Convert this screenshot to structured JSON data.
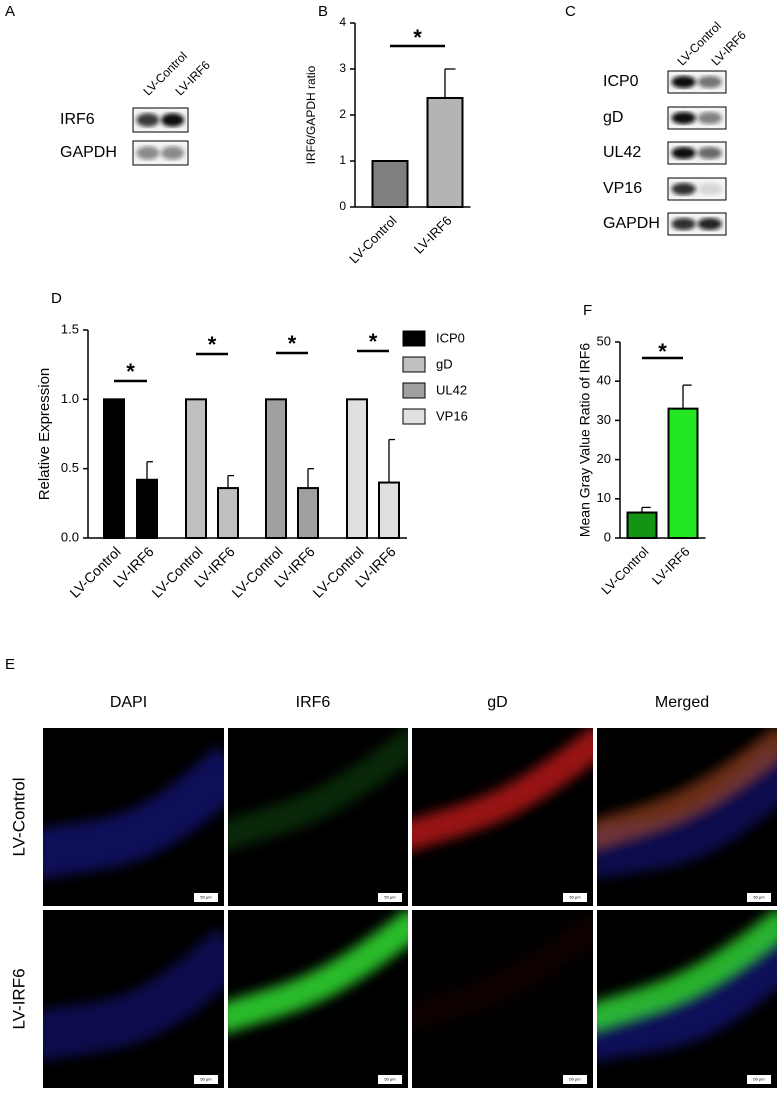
{
  "blot_a": {
    "label": "A",
    "lanes": [
      "LV-Control",
      "LV-IRF6"
    ],
    "rows": [
      "IRF6",
      "GAPDH"
    ]
  },
  "blot_c": {
    "label": "C",
    "lanes": [
      "LV-Control",
      "LV-IRF6"
    ],
    "rows": [
      "ICP0",
      "gD",
      "UL42",
      "VP16",
      "GAPDH"
    ]
  },
  "chart_data": [
    {
      "type": "bar",
      "label": "B",
      "categories": [
        "LV-Control",
        "LV-IRF6"
      ],
      "values": [
        1,
        2.37
      ],
      "errors": [
        null,
        0.63
      ],
      "colors": [
        "#7f7f7f",
        "#b4b4b4"
      ],
      "ylabel": "IRF6/GAPDH ratio",
      "ylim": [
        0,
        4
      ],
      "yticks": [
        0,
        1,
        2,
        3,
        4
      ],
      "significance": "*"
    },
    {
      "type": "grouped_bar",
      "label": "D",
      "categories": [
        "LV-Control",
        "LV-IRF6"
      ],
      "series": [
        {
          "name": "ICP0",
          "color": "#000000",
          "values": [
            1,
            0.42
          ],
          "errors": [
            null,
            0.13
          ]
        },
        {
          "name": "gD",
          "color": "#c0c0c0",
          "values": [
            1,
            0.36
          ],
          "errors": [
            null,
            0.09
          ]
        },
        {
          "name": "UL42",
          "color": "#a0a0a0",
          "values": [
            1,
            0.36
          ],
          "errors": [
            null,
            0.14
          ]
        },
        {
          "name": "VP16",
          "color": "#e0e0e0",
          "values": [
            1,
            0.4
          ],
          "errors": [
            null,
            0.31
          ]
        }
      ],
      "ylabel": "Relative Expression",
      "ylim": [
        0,
        1.5
      ],
      "yticks": [
        {
          "value": 0,
          "label": "0.0"
        },
        0.5,
        {
          "value": 1,
          "label": "1.0"
        },
        1.5
      ],
      "significance": "*"
    },
    {
      "type": "bar",
      "label": "F",
      "categories": [
        "LV-Control",
        "LV-IRF6"
      ],
      "values": [
        6.5,
        33
      ],
      "errors": [
        1.3,
        6
      ],
      "colors": [
        "#149414",
        "#22e622"
      ],
      "ylabel": "Mean Gray Value Ratio of IRF6",
      "ylim": [
        0,
        50
      ],
      "yticks": [
        0,
        10,
        20,
        30,
        40,
        50
      ],
      "significance": "*"
    }
  ],
  "microscopy": {
    "label": "E",
    "columns": [
      "DAPI",
      "IRF6",
      "gD",
      "Merged"
    ],
    "column_colors": [
      "#2a2aff",
      "#33cc33",
      "#ee2222",
      "#000000"
    ],
    "rows": [
      "LV-Control",
      "LV-IRF6"
    ],
    "scale_bar": "50 μm"
  }
}
